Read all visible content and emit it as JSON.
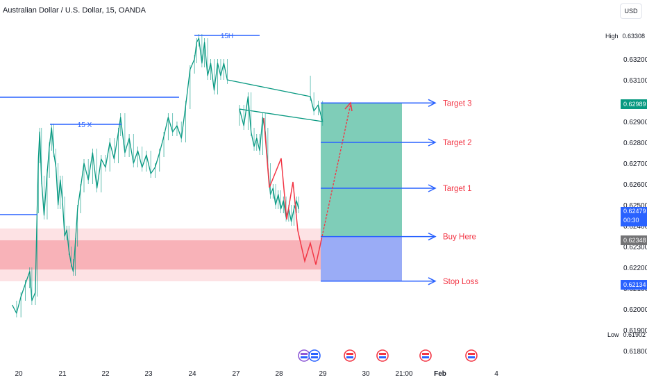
{
  "header": {
    "title": "Australian Dollar / U.S. Dollar, 15, OANDA",
    "currency_button": "USD"
  },
  "colors": {
    "price_line": "#089981",
    "level_line": "#2962ff",
    "arrow": "#f23645",
    "target_box": "#7fcdb8",
    "entry_box": "#8fa3f5",
    "zone": "#f7a9b0",
    "axis_text": "#131722"
  },
  "chart_data": {
    "type": "line",
    "title": "Australian Dollar / U.S. Dollar, 15, OANDA",
    "x_ticks": [
      "20",
      "21",
      "22",
      "23",
      "24",
      "27",
      "28",
      "29",
      "30",
      "21:00",
      "Feb",
      "4"
    ],
    "y_ticks": [
      0.618,
      0.619,
      0.62,
      0.621,
      0.622,
      0.623,
      0.624,
      0.625,
      0.626,
      0.627,
      0.628,
      0.629,
      0.631,
      0.632
    ],
    "ylim": [
      0.6176,
      0.6338
    ],
    "high": 0.63308,
    "low": 0.61902,
    "current_price": 0.62479,
    "countdown": "00:30",
    "price_series": [
      {
        "day": 19.85,
        "close": 0.6202
      },
      {
        "day": 19.95,
        "close": 0.6198
      },
      {
        "day": 20.05,
        "close": 0.6206
      },
      {
        "day": 20.15,
        "close": 0.6212
      },
      {
        "day": 20.25,
        "close": 0.6218
      },
      {
        "day": 20.3,
        "close": 0.6204
      },
      {
        "day": 20.38,
        "close": 0.6208
      },
      {
        "day": 20.42,
        "close": 0.6248
      },
      {
        "day": 20.45,
        "close": 0.6272
      },
      {
        "day": 20.48,
        "close": 0.6285
      },
      {
        "day": 20.52,
        "close": 0.6262
      },
      {
        "day": 20.58,
        "close": 0.6245
      },
      {
        "day": 20.65,
        "close": 0.6265
      },
      {
        "day": 20.7,
        "close": 0.6278
      },
      {
        "day": 20.75,
        "close": 0.6287
      },
      {
        "day": 20.8,
        "close": 0.6275
      },
      {
        "day": 20.85,
        "close": 0.6268
      },
      {
        "day": 20.9,
        "close": 0.625
      },
      {
        "day": 20.95,
        "close": 0.6262
      },
      {
        "day": 21.0,
        "close": 0.6252
      },
      {
        "day": 21.05,
        "close": 0.6235
      },
      {
        "day": 21.1,
        "close": 0.6238
      },
      {
        "day": 21.15,
        "close": 0.6228
      },
      {
        "day": 21.2,
        "close": 0.6222
      },
      {
        "day": 21.25,
        "close": 0.6218
      },
      {
        "day": 21.3,
        "close": 0.6232
      },
      {
        "day": 21.35,
        "close": 0.6248
      },
      {
        "day": 21.42,
        "close": 0.6258
      },
      {
        "day": 21.5,
        "close": 0.627
      },
      {
        "day": 21.6,
        "close": 0.6262
      },
      {
        "day": 21.7,
        "close": 0.6275
      },
      {
        "day": 21.8,
        "close": 0.6258
      },
      {
        "day": 21.9,
        "close": 0.6272
      },
      {
        "day": 22.0,
        "close": 0.6268
      },
      {
        "day": 22.1,
        "close": 0.628
      },
      {
        "day": 22.2,
        "close": 0.6272
      },
      {
        "day": 22.3,
        "close": 0.6285
      },
      {
        "day": 22.35,
        "close": 0.6292
      },
      {
        "day": 22.45,
        "close": 0.6275
      },
      {
        "day": 22.55,
        "close": 0.6282
      },
      {
        "day": 22.65,
        "close": 0.627
      },
      {
        "day": 22.75,
        "close": 0.6276
      },
      {
        "day": 22.85,
        "close": 0.6268
      },
      {
        "day": 22.95,
        "close": 0.6274
      },
      {
        "day": 23.05,
        "close": 0.6265
      },
      {
        "day": 23.15,
        "close": 0.6268
      },
      {
        "day": 23.25,
        "close": 0.6275
      },
      {
        "day": 23.35,
        "close": 0.6283
      },
      {
        "day": 23.45,
        "close": 0.6292
      },
      {
        "day": 23.55,
        "close": 0.6285
      },
      {
        "day": 23.65,
        "close": 0.6288
      },
      {
        "day": 23.75,
        "close": 0.6282
      },
      {
        "day": 23.85,
        "close": 0.6298
      },
      {
        "day": 23.95,
        "close": 0.6315
      },
      {
        "day": 24.05,
        "close": 0.632
      },
      {
        "day": 24.1,
        "close": 0.6328
      },
      {
        "day": 24.15,
        "close": 0.633
      },
      {
        "day": 24.22,
        "close": 0.6318
      },
      {
        "day": 24.28,
        "close": 0.6328
      },
      {
        "day": 24.35,
        "close": 0.6312
      },
      {
        "day": 24.42,
        "close": 0.6318
      },
      {
        "day": 24.5,
        "close": 0.6305
      },
      {
        "day": 24.58,
        "close": 0.6318
      },
      {
        "day": 24.65,
        "close": 0.6312
      },
      {
        "day": 24.72,
        "close": 0.6318
      },
      {
        "day": 24.8,
        "close": 0.631
      },
      {
        "day": 26.7,
        "close": 0.6302
      },
      {
        "day": 26.78,
        "close": 0.6295
      },
      {
        "day": 26.88,
        "close": 0.6298
      },
      {
        "day": 26.98,
        "close": 0.629
      },
      {
        "day": 27.08,
        "close": 0.6296
      },
      {
        "day": 27.18,
        "close": 0.6288
      },
      {
        "day": 27.28,
        "close": 0.6302
      },
      {
        "day": 27.35,
        "close": 0.6285
      },
      {
        "day": 27.42,
        "close": 0.6278
      },
      {
        "day": 27.48,
        "close": 0.6282
      },
      {
        "day": 27.55,
        "close": 0.6276
      },
      {
        "day": 27.62,
        "close": 0.6292
      },
      {
        "day": 27.68,
        "close": 0.6285
      },
      {
        "day": 27.74,
        "close": 0.6268
      },
      {
        "day": 27.8,
        "close": 0.6255
      },
      {
        "day": 27.86,
        "close": 0.6258
      },
      {
        "day": 27.92,
        "close": 0.625
      },
      {
        "day": 27.98,
        "close": 0.6255
      },
      {
        "day": 28.04,
        "close": 0.6248
      },
      {
        "day": 28.1,
        "close": 0.6252
      },
      {
        "day": 28.16,
        "close": 0.6244
      },
      {
        "day": 28.22,
        "close": 0.6248
      },
      {
        "day": 28.28,
        "close": 0.6242
      },
      {
        "day": 28.34,
        "close": 0.6248
      },
      {
        "day": 28.4,
        "close": 0.6252
      },
      {
        "day": 28.45,
        "close": 0.6248
      }
    ],
    "horizontal_levels": [
      {
        "label": "15 X",
        "price": 0.6289
      },
      {
        "label": "15H",
        "price": 0.633
      }
    ],
    "support_zone": {
      "from": 0.6219,
      "to": 0.6233
    },
    "trade_setup": {
      "entry": 0.62348,
      "stop_loss": 0.62134,
      "target_1": 0.6258,
      "target_2": 0.628,
      "target_3": 0.62989
    },
    "labels": {
      "target_3": "Target 3",
      "target_2": "Target 2",
      "target_1": "Target 1",
      "buy": "Buy Here",
      "stop": "Stop Loss"
    }
  },
  "price_scale_tags": {
    "high_label": "High",
    "high_value": "0.63308",
    "target_value": "0.62989",
    "current_value": "0.62479",
    "current_countdown": "00:30",
    "entry_value": "0.62348",
    "stop_value": "0.62134",
    "low_label": "Low",
    "low_value": "0.61902"
  }
}
